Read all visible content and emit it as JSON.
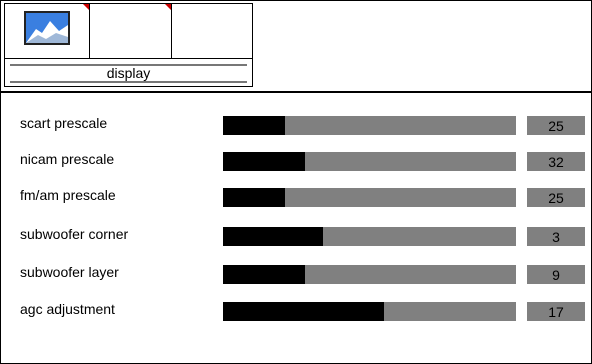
{
  "tabs": [
    {
      "icon": "mountain-thumbnail-icon",
      "accent": "#cc0000"
    },
    {
      "accent": "#cc0000"
    },
    {}
  ],
  "tab_label": "display",
  "settings": [
    {
      "label": "scart prescale",
      "value": "25",
      "level": 0.21
    },
    {
      "label": "nicam prescale",
      "value": "32",
      "level": 0.28
    },
    {
      "label": "fm/am prescale",
      "value": "25",
      "level": 0.21
    },
    {
      "label": "subwoofer corner",
      "value": "3",
      "level": 0.34
    },
    {
      "label": "subwoofer layer",
      "value": "9",
      "level": 0.28
    },
    {
      "label": "agc adjustment",
      "value": "17",
      "level": 0.55
    }
  ],
  "colors": {
    "bar": "#808080",
    "fill": "#000000",
    "accent": "#cc0000"
  }
}
